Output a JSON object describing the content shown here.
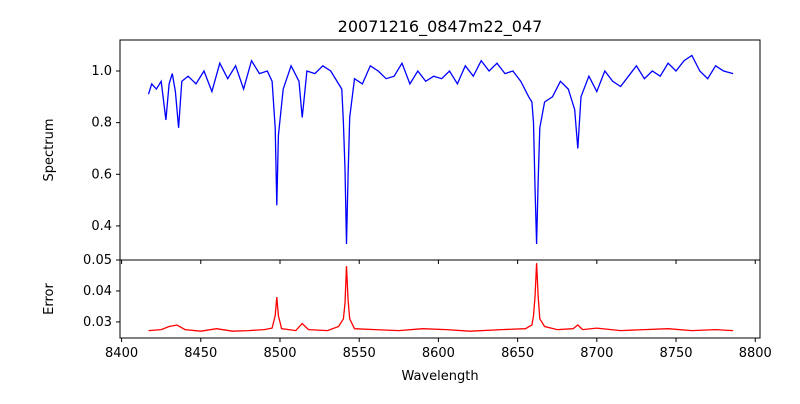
{
  "chart_data": {
    "type": "line",
    "title": "20071216_0847m22_047",
    "xlabel": "Wavelength",
    "xlim": [
      8399,
      8803
    ],
    "xticks": [
      "8400",
      "8450",
      "8500",
      "8550",
      "8600",
      "8650",
      "8700",
      "8750",
      "8800"
    ],
    "panels": [
      {
        "name": "spectrum",
        "ylabel": "Spectrum",
        "ylim": [
          0.268,
          1.12
        ],
        "yticks": [
          "0.4",
          "0.6",
          "0.8",
          "1.0"
        ],
        "color": "#0000ff",
        "x": [
          8417,
          8419,
          8422,
          8425,
          8428,
          8430,
          8432,
          8434,
          8436,
          8438,
          8442,
          8447,
          8452,
          8457,
          8462,
          8467,
          8472,
          8477,
          8482,
          8487,
          8492,
          8495,
          8497,
          8498,
          8499,
          8502,
          8507,
          8512,
          8514,
          8515,
          8517,
          8522,
          8527,
          8532,
          8537,
          8539,
          8540,
          8541,
          8542,
          8543,
          8544,
          8547,
          8552,
          8557,
          8562,
          8567,
          8572,
          8577,
          8582,
          8587,
          8592,
          8597,
          8602,
          8607,
          8612,
          8617,
          8622,
          8627,
          8632,
          8637,
          8642,
          8647,
          8652,
          8657,
          8659,
          8660,
          8661,
          8662,
          8663,
          8664,
          8667,
          8672,
          8677,
          8682,
          8686,
          8688,
          8690,
          8695,
          8700,
          8705,
          8710,
          8715,
          8720,
          8725,
          8730,
          8735,
          8740,
          8745,
          8750,
          8755,
          8760,
          8765,
          8770,
          8775,
          8780,
          8786
        ],
        "y": [
          0.91,
          0.95,
          0.93,
          0.96,
          0.81,
          0.95,
          0.99,
          0.92,
          0.78,
          0.96,
          0.98,
          0.95,
          1.0,
          0.92,
          1.03,
          0.97,
          1.02,
          0.93,
          1.04,
          0.99,
          1.0,
          0.96,
          0.78,
          0.48,
          0.75,
          0.93,
          1.02,
          0.96,
          0.82,
          0.88,
          1.0,
          0.99,
          1.02,
          1.0,
          0.95,
          0.93,
          0.8,
          0.62,
          0.33,
          0.6,
          0.82,
          0.97,
          0.95,
          1.02,
          1.0,
          0.97,
          0.98,
          1.03,
          0.95,
          1.0,
          0.96,
          0.98,
          0.97,
          1.0,
          0.95,
          1.02,
          0.98,
          1.04,
          1.0,
          1.03,
          0.99,
          1.0,
          0.96,
          0.9,
          0.88,
          0.8,
          0.55,
          0.33,
          0.58,
          0.78,
          0.88,
          0.9,
          0.96,
          0.93,
          0.85,
          0.7,
          0.9,
          0.98,
          0.92,
          1.0,
          0.96,
          0.94,
          0.98,
          1.02,
          0.97,
          1.0,
          0.98,
          1.03,
          1.0,
          1.04,
          1.06,
          1.0,
          0.97,
          1.02,
          1.0,
          0.99
        ]
      },
      {
        "name": "error",
        "ylabel": "Error",
        "ylim": [
          0.0248,
          0.05
        ],
        "yticks": [
          "0.03",
          "0.04",
          "0.05"
        ],
        "color": "#ff0000",
        "x": [
          8417,
          8425,
          8430,
          8435,
          8440,
          8450,
          8460,
          8470,
          8480,
          8490,
          8495,
          8497,
          8498,
          8499,
          8501,
          8510,
          8514,
          8518,
          8530,
          8537,
          8540,
          8541,
          8542,
          8543,
          8544,
          8547,
          8560,
          8575,
          8590,
          8605,
          8620,
          8640,
          8655,
          8659,
          8660,
          8661,
          8662,
          8663,
          8664,
          8667,
          8675,
          8685,
          8688,
          8691,
          8700,
          8715,
          8730,
          8745,
          8760,
          8775,
          8786
        ],
        "y": [
          0.0272,
          0.0275,
          0.0285,
          0.029,
          0.0275,
          0.027,
          0.0278,
          0.027,
          0.0272,
          0.0275,
          0.028,
          0.032,
          0.038,
          0.032,
          0.0278,
          0.0272,
          0.0295,
          0.0275,
          0.0272,
          0.0285,
          0.031,
          0.036,
          0.048,
          0.037,
          0.031,
          0.0278,
          0.0275,
          0.0272,
          0.0278,
          0.0275,
          0.027,
          0.0275,
          0.0278,
          0.029,
          0.032,
          0.038,
          0.049,
          0.038,
          0.031,
          0.0285,
          0.0275,
          0.0278,
          0.029,
          0.0275,
          0.028,
          0.0272,
          0.0275,
          0.0278,
          0.0272,
          0.0275,
          0.0272
        ]
      }
    ]
  }
}
